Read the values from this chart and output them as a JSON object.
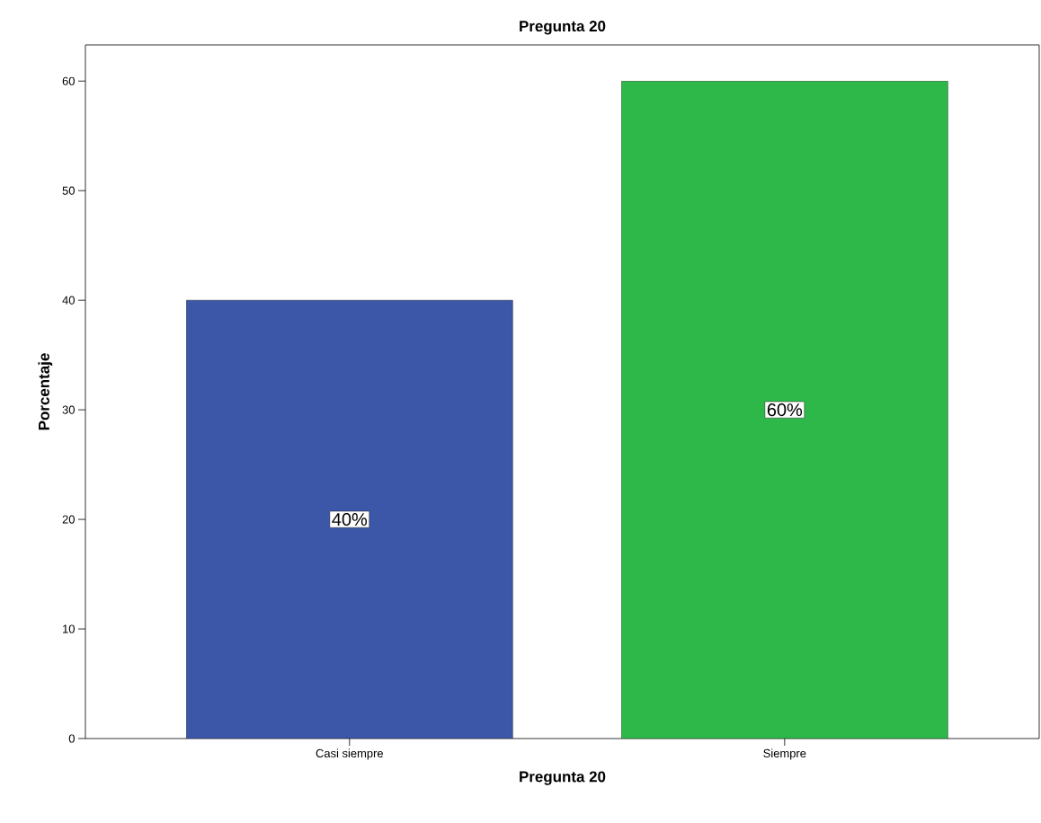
{
  "chart_data": {
    "type": "bar",
    "title": "Pregunta 20",
    "xlabel": "Pregunta 20",
    "ylabel": "Porcentaje",
    "categories": [
      "Casi siempre",
      "Siempre"
    ],
    "values": [
      40,
      60
    ],
    "colors": [
      "#3c56a8",
      "#2fb84a"
    ],
    "value_labels": [
      "40%",
      "60%"
    ],
    "ylim": [
      0,
      63.3
    ],
    "yticks": [
      0,
      10,
      20,
      30,
      40,
      50,
      60
    ],
    "grid": false
  }
}
